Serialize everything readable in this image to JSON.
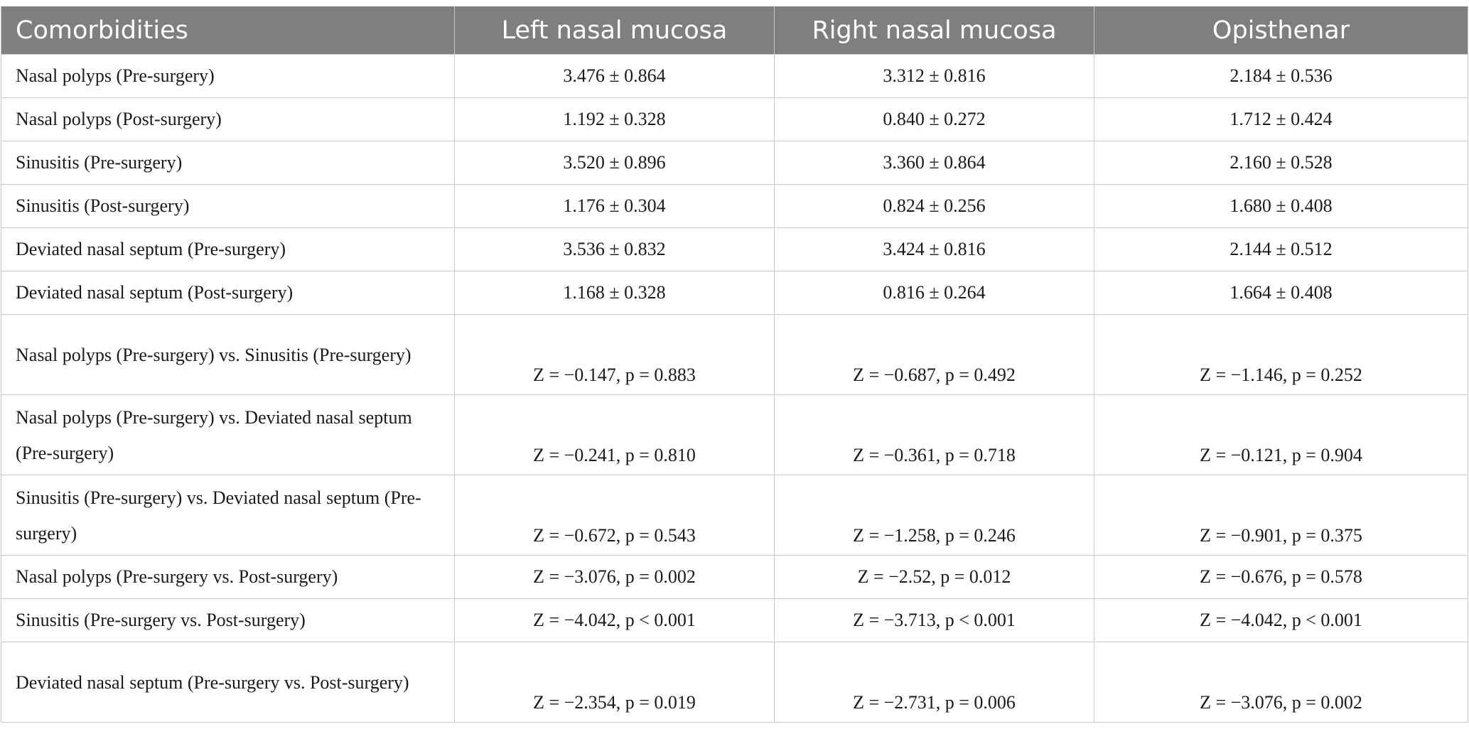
{
  "header": {
    "col1": "Comorbidities",
    "col2": "Left nasal mucosa",
    "col3": "Right nasal mucosa",
    "col4": "Opisthenar"
  },
  "rows": [
    {
      "label": "Nasal polyps (Pre-surgery)",
      "left": "3.476 ± 0.864",
      "right": "3.312 ± 0.816",
      "opisthenar": "2.184 ± 0.536"
    },
    {
      "label": "Nasal polyps (Post-surgery)",
      "left": "1.192 ± 0.328",
      "right": "0.840 ± 0.272",
      "opisthenar": "1.712 ± 0.424"
    },
    {
      "label": "Sinusitis (Pre-surgery)",
      "left": "3.520 ± 0.896",
      "right": "3.360 ± 0.864",
      "opisthenar": "2.160 ± 0.528"
    },
    {
      "label": "Sinusitis (Post-surgery)",
      "left": "1.176 ± 0.304",
      "right": "0.824 ± 0.256",
      "opisthenar": "1.680 ± 0.408"
    },
    {
      "label": "Deviated nasal septum (Pre-surgery)",
      "left": "3.536 ± 0.832",
      "right": "3.424 ± 0.816",
      "opisthenar": "2.144 ± 0.512"
    },
    {
      "label": "Deviated nasal septum (Post-surgery)",
      "left": "1.168 ± 0.328",
      "right": "0.816 ± 0.264",
      "opisthenar": "1.664 ± 0.408"
    },
    {
      "label": "Nasal polyps (Pre-surgery) vs. Sinusitis (Pre-surgery)",
      "left": "Z = −0.147, p = 0.883",
      "right": "Z = −0.687, p = 0.492",
      "opisthenar": "Z = −1.146, p = 0.252"
    },
    {
      "label": "Nasal polyps (Pre-surgery) vs. Deviated nasal septum (Pre-surgery)",
      "left": "Z = −0.241, p = 0.810",
      "right": "Z = −0.361, p = 0.718",
      "opisthenar": "Z = −0.121, p = 0.904"
    },
    {
      "label": "Sinusitis (Pre-surgery) vs. Deviated nasal septum (Pre-surgery)",
      "left": "Z = −0.672, p = 0.543",
      "right": "Z = −1.258, p = 0.246",
      "opisthenar": "Z = −0.901, p = 0.375"
    },
    {
      "label": "Nasal polyps (Pre-surgery vs. Post-surgery)",
      "left": "Z = −3.076, p = 0.002",
      "right": "Z = −2.52, p = 0.012",
      "opisthenar": "Z = −0.676, p = 0.578"
    },
    {
      "label": "Sinusitis (Pre-surgery vs. Post-surgery)",
      "left": "Z = −4.042, p < 0.001",
      "right": "Z = −3.713, p < 0.001",
      "opisthenar": "Z = −4.042, p < 0.001"
    },
    {
      "label": "Deviated nasal septum (Pre-surgery vs. Post-surgery)",
      "left": "Z = −2.354, p = 0.019",
      "right": "Z = −2.731, p = 0.006",
      "opisthenar": "Z = −3.076, p = 0.002"
    }
  ]
}
